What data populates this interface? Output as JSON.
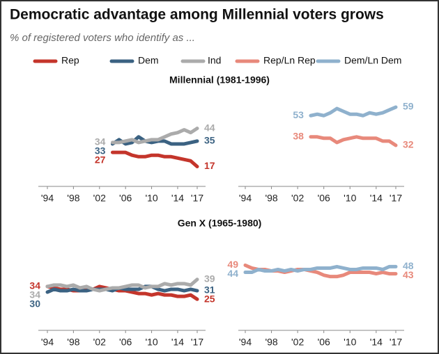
{
  "title": "Democratic advantage among Millennial voters grows",
  "subtitle": "% of registered voters who identify as ...",
  "chart_data": [
    {
      "type": "line",
      "title": "Millennial (1981-1996)",
      "x": [
        2004,
        2005,
        2006,
        2007,
        2008,
        2009,
        2010,
        2011,
        2012,
        2013,
        2014,
        2015,
        2016,
        2017
      ],
      "xlim": [
        1994,
        2017
      ],
      "xticks": [
        {
          "value": 1994,
          "label": "'94"
        },
        {
          "value": 1998,
          "label": "'98"
        },
        {
          "value": 2002,
          "label": "'02"
        },
        {
          "value": 2006,
          "label": "'06"
        },
        {
          "value": 2010,
          "label": "'10"
        },
        {
          "value": 2014,
          "label": "'14"
        },
        {
          "value": 2017,
          "label": "'17"
        }
      ],
      "ylim": [
        3,
        60
      ],
      "series": [
        {
          "name": "Rep",
          "color": "#c4352b",
          "values": [
            27,
            27,
            27,
            25,
            24,
            24,
            25,
            25,
            24,
            24,
            23,
            22,
            21,
            17
          ]
        },
        {
          "name": "Dem",
          "color": "#3b6282",
          "values": [
            33,
            36,
            33,
            34,
            38,
            35,
            34,
            35,
            35,
            33,
            33,
            33,
            34,
            35
          ]
        },
        {
          "name": "Ind",
          "color": "#ababab",
          "values": [
            34,
            34,
            35,
            36,
            34,
            35,
            36,
            36,
            38,
            40,
            41,
            43,
            41,
            44
          ]
        }
      ]
    },
    {
      "type": "line",
      "x": [
        2004,
        2005,
        2006,
        2007,
        2008,
        2009,
        2010,
        2011,
        2012,
        2013,
        2014,
        2015,
        2016,
        2017
      ],
      "xlim": [
        1994,
        2017
      ],
      "xticks": [
        {
          "value": 1994,
          "label": "'94"
        },
        {
          "value": 1998,
          "label": "'98"
        },
        {
          "value": 2002,
          "label": "'02"
        },
        {
          "value": 2006,
          "label": "'06"
        },
        {
          "value": 2010,
          "label": "'10"
        },
        {
          "value": 2014,
          "label": "'14"
        },
        {
          "value": 2017,
          "label": "'17"
        }
      ],
      "ylim": [
        3,
        60
      ],
      "series": [
        {
          "name": "Rep/Ln Rep",
          "color": "#e8897b",
          "values": [
            38,
            38,
            37,
            37,
            34,
            36,
            37,
            38,
            37,
            37,
            37,
            35,
            35,
            32
          ]
        },
        {
          "name": "Dem/Ln Dem",
          "color": "#8fb1cd",
          "values": [
            53,
            54,
            53,
            55,
            58,
            56,
            54,
            54,
            53,
            55,
            54,
            55,
            57,
            59
          ]
        }
      ]
    },
    {
      "type": "line",
      "title": "Gen X (1965-1980)",
      "x": [
        1994,
        1995,
        1996,
        1997,
        1998,
        1999,
        2000,
        2001,
        2002,
        2003,
        2004,
        2005,
        2006,
        2007,
        2008,
        2009,
        2010,
        2011,
        2012,
        2013,
        2014,
        2015,
        2016,
        2017
      ],
      "xlim": [
        1994,
        2017
      ],
      "xticks": [
        {
          "value": 1994,
          "label": "'94"
        },
        {
          "value": 1998,
          "label": "'98"
        },
        {
          "value": 2002,
          "label": "'02"
        },
        {
          "value": 2006,
          "label": "'06"
        },
        {
          "value": 2010,
          "label": "'10"
        },
        {
          "value": 2014,
          "label": "'14"
        },
        {
          "value": 2017,
          "label": "'17"
        }
      ],
      "ylim": [
        3,
        60
      ],
      "series": [
        {
          "color": "#c4352b",
          "values": [
            34,
            33,
            32,
            32,
            31,
            31,
            32,
            32,
            34,
            33,
            32,
            31,
            31,
            30,
            29,
            29,
            28,
            29,
            28,
            28,
            27,
            27,
            28,
            25
          ]
        },
        {
          "color": "#3b6282",
          "values": [
            30,
            32,
            31,
            31,
            32,
            31,
            31,
            32,
            32,
            32,
            31,
            33,
            32,
            32,
            32,
            34,
            34,
            32,
            31,
            32,
            32,
            31,
            32,
            31
          ]
        },
        {
          "color": "#ababab",
          "values": [
            34,
            35,
            35,
            34,
            35,
            33,
            34,
            32,
            31,
            32,
            33,
            33,
            34,
            35,
            35,
            33,
            34,
            34,
            36,
            35,
            36,
            36,
            35,
            39
          ]
        }
      ]
    },
    {
      "type": "line",
      "x": [
        1994,
        1995,
        1996,
        1997,
        1998,
        1999,
        2000,
        2001,
        2002,
        2003,
        2004,
        2005,
        2006,
        2007,
        2008,
        2009,
        2010,
        2011,
        2012,
        2013,
        2014,
        2015,
        2016,
        2017
      ],
      "xlim": [
        1994,
        2017
      ],
      "xticks": [
        {
          "value": 1994,
          "label": "'94"
        },
        {
          "value": 1998,
          "label": "'98"
        },
        {
          "value": 2002,
          "label": "'02"
        },
        {
          "value": 2006,
          "label": "'06"
        },
        {
          "value": 2010,
          "label": "'10"
        },
        {
          "value": 2014,
          "label": "'14"
        },
        {
          "value": 2017,
          "label": "'17"
        }
      ],
      "ylim": [
        3,
        60
      ],
      "series": [
        {
          "color": "#e8897b",
          "values": [
            49,
            47,
            46,
            46,
            45,
            45,
            44,
            45,
            46,
            46,
            45,
            44,
            42,
            41,
            41,
            42,
            44,
            44,
            44,
            44,
            43,
            44,
            43,
            43
          ]
        },
        {
          "color": "#8fb1cd",
          "values": [
            44,
            44,
            46,
            45,
            45,
            46,
            45,
            46,
            45,
            46,
            46,
            47,
            47,
            47,
            48,
            47,
            46,
            46,
            47,
            47,
            47,
            46,
            48,
            48
          ]
        }
      ]
    }
  ]
}
